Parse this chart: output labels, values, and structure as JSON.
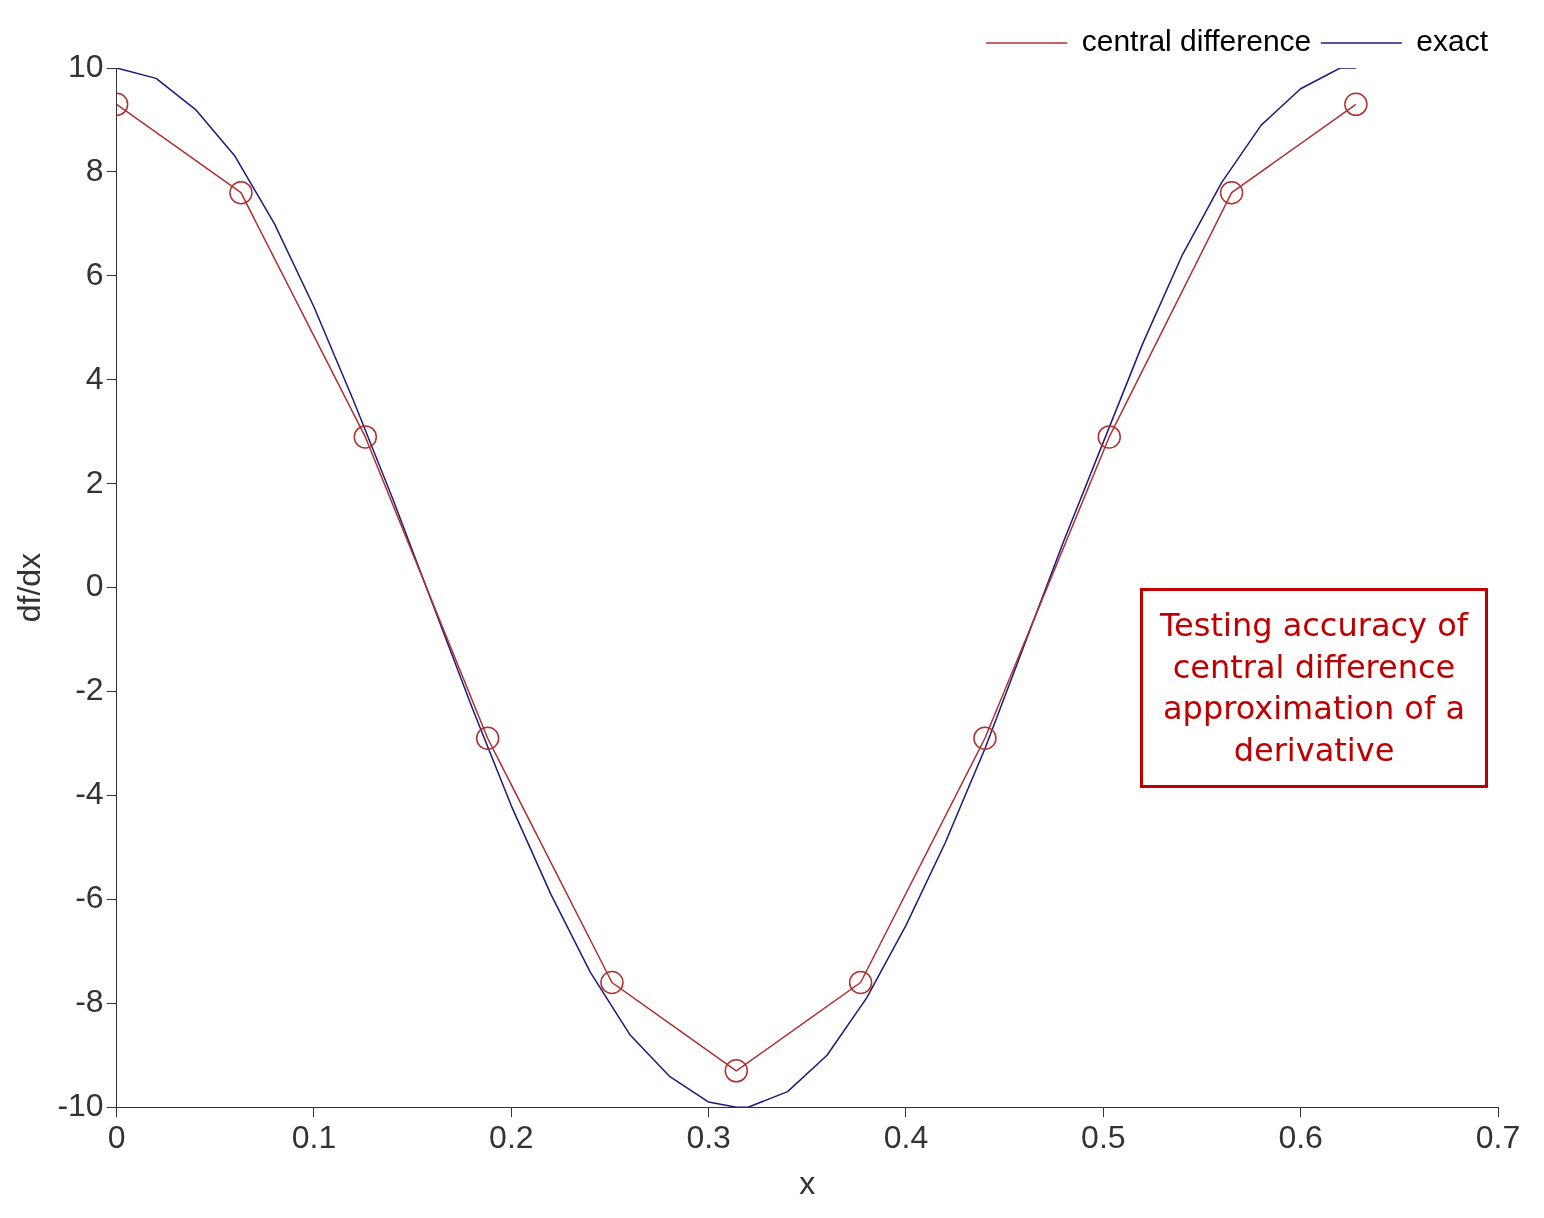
{
  "chart_data": {
    "type": "line",
    "xlabel": "x",
    "ylabel": "df/dx",
    "xlim": [
      0,
      0.7
    ],
    "xticks": [
      0,
      0.1,
      0.2,
      0.3,
      0.4,
      0.5,
      0.6,
      0.7
    ],
    "ylim": [
      -10,
      10
    ],
    "yticks": [
      -10,
      -8,
      -6,
      -4,
      -2,
      0,
      2,
      4,
      6,
      8,
      10
    ],
    "grid": false,
    "legend": "top right",
    "annotations": [
      "Testing accuracy of central difference approximation of a derivative"
    ],
    "series": [
      {
        "name": "central difference",
        "color": "#b03030",
        "marker": "circle",
        "x": [
          0,
          0.063,
          0.126,
          0.188,
          0.251,
          0.314,
          0.377,
          0.44,
          0.503,
          0.565,
          0.628
        ],
        "values": [
          9.3,
          7.6,
          2.9,
          -2.9,
          -7.6,
          -9.3,
          -7.6,
          -2.9,
          2.9,
          7.6,
          9.3
        ]
      },
      {
        "name": "exact",
        "color": "#1a1a80",
        "marker": "none",
        "x": [
          0,
          0.02,
          0.04,
          0.06,
          0.08,
          0.1,
          0.12,
          0.14,
          0.16,
          0.18,
          0.2,
          0.22,
          0.24,
          0.26,
          0.28,
          0.3,
          0.314,
          0.32,
          0.34,
          0.36,
          0.38,
          0.4,
          0.42,
          0.44,
          0.46,
          0.48,
          0.5,
          0.52,
          0.54,
          0.56,
          0.58,
          0.6,
          0.62,
          0.628
        ],
        "values": [
          10,
          9.8,
          9.2,
          8.3,
          7,
          5.4,
          3.6,
          1.7,
          -0.3,
          -2.3,
          -4.2,
          -5.9,
          -7.4,
          -8.6,
          -9.4,
          -9.9,
          -10,
          -10,
          -9.7,
          -9,
          -7.9,
          -6.5,
          -4.9,
          -3.1,
          -1.1,
          0.9,
          2.8,
          4.7,
          6.4,
          7.8,
          8.9,
          9.6,
          10,
          10
        ]
      }
    ]
  }
}
